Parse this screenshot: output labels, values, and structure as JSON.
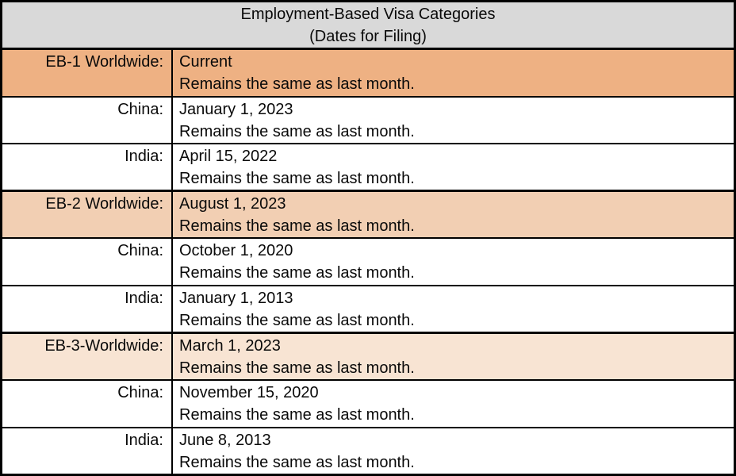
{
  "header": {
    "title_line1": "Employment-Based Visa Categories",
    "title_line2": "(Dates for Filing)"
  },
  "table": {
    "rows": [
      {
        "label": "EB-1 Worldwide:",
        "date": "Current",
        "note": "Remains the same as last month.",
        "highlight": "eb1"
      },
      {
        "label": "China:",
        "date": "January 1, 2023",
        "note": "Remains the same as last month.",
        "highlight": "none"
      },
      {
        "label": "India:",
        "date": "April 15, 2022",
        "note": "Remains the same as last month.",
        "highlight": "none"
      },
      {
        "label": "EB-2 Worldwide:",
        "date": "August 1, 2023",
        "note": "Remains the same as last month.",
        "highlight": "eb2"
      },
      {
        "label": "China:",
        "date": "October 1, 2020",
        "note": "Remains the same as last month.",
        "highlight": "none"
      },
      {
        "label": "India:",
        "date": "January 1, 2013",
        "note": "Remains the same as last month.",
        "highlight": "none"
      },
      {
        "label": "EB-3-Worldwide:",
        "date": "March 1, 2023",
        "note": "Remains the same as last month.",
        "highlight": "eb3"
      },
      {
        "label": "China:",
        "date": "November 15, 2020",
        "note": "Remains the same as last month.",
        "highlight": "none"
      },
      {
        "label": "India:",
        "date": "June 8, 2013",
        "note": "Remains the same as last month.",
        "highlight": "none"
      }
    ]
  },
  "colors": {
    "header_bg": "#d9d9d9",
    "eb1_bg": "#eeb183",
    "eb2_bg": "#f2cfb3",
    "eb3_bg": "#f8e4d3",
    "border_color": "#000000"
  }
}
